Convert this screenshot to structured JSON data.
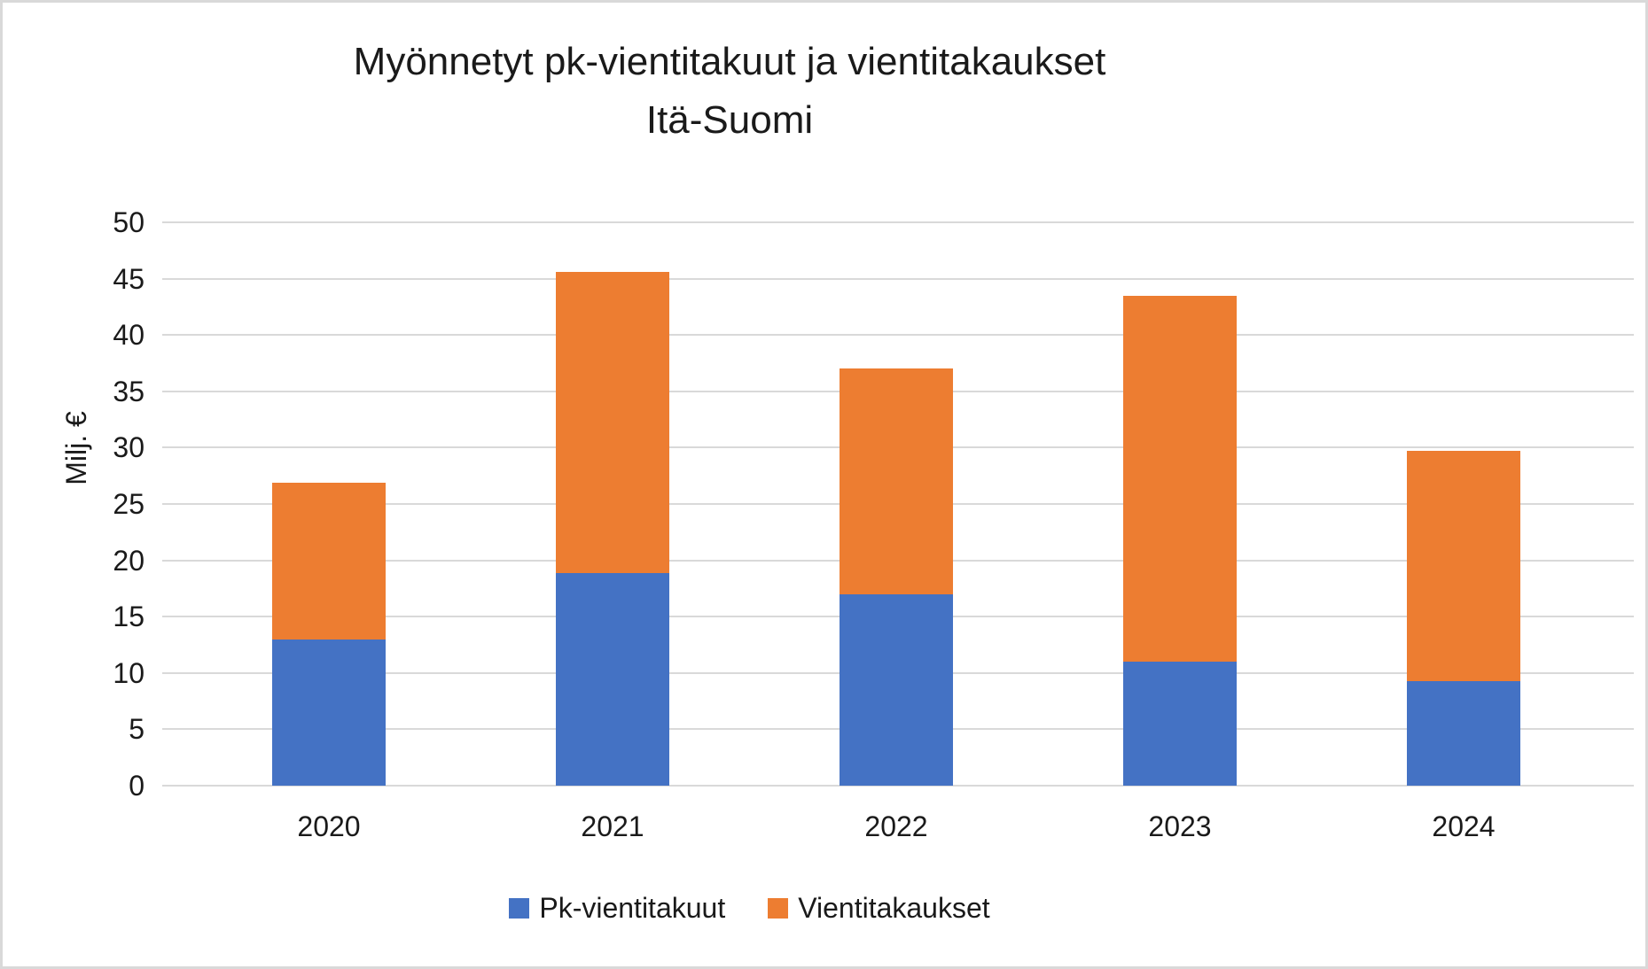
{
  "chart_data": {
    "type": "bar",
    "stacked": true,
    "title": "Myönnetyt pk-vientitakuut ja vientitakaukset",
    "subtitle": "Itä-Suomi",
    "ylabel": "Milj. €",
    "xlabel": "",
    "categories": [
      "2020",
      "2021",
      "2022",
      "2023",
      "2024"
    ],
    "series": [
      {
        "name": "Pk-vientitakuut",
        "color": "#4472C4",
        "values": [
          13.0,
          18.9,
          17.0,
          11.0,
          9.3
        ]
      },
      {
        "name": "Vientitakaukset",
        "color": "#ED7D31",
        "values": [
          13.9,
          26.7,
          20.0,
          32.5,
          20.4
        ]
      }
    ],
    "stack_totals": [
      26.9,
      45.6,
      37.0,
      43.5,
      29.7
    ],
    "ylim": [
      0,
      50
    ],
    "yticks": [
      0,
      5,
      10,
      15,
      20,
      25,
      30,
      35,
      40,
      45,
      50
    ],
    "grid": "horizontal",
    "gridline_color": "#D9D9D9",
    "legend_position": "bottom",
    "background_color": "#FFFFFF",
    "border_color": "#D9D9D9"
  }
}
